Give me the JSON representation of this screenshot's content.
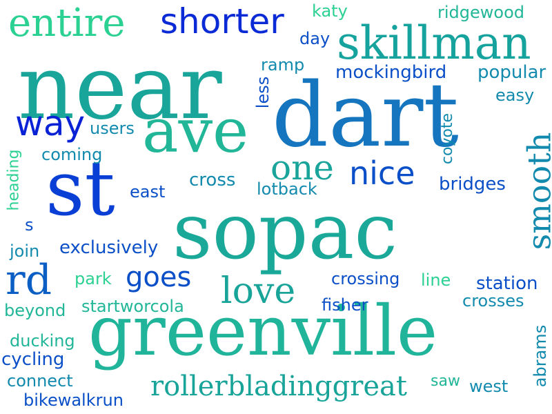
{
  "words": [
    {
      "id": "near",
      "text": "near",
      "color": "#1aa59b"
    },
    {
      "id": "dart",
      "text": "dart",
      "color": "#1575be"
    },
    {
      "id": "sopac",
      "text": "sopac",
      "color": "#1aa899"
    },
    {
      "id": "greenville",
      "text": "greenville",
      "color": "#20b49a"
    },
    {
      "id": "st",
      "text": "st",
      "color": "#0a3fd6"
    },
    {
      "id": "ave",
      "text": "ave",
      "color": "#20b697"
    },
    {
      "id": "skillman",
      "text": "skillman",
      "color": "#16a39d"
    },
    {
      "id": "shorter",
      "text": "shorter",
      "color": "#0a2ad6"
    },
    {
      "id": "entire",
      "text": "entire",
      "color": "#2bd192"
    },
    {
      "id": "rd",
      "text": "rd",
      "color": "#0a5ec4"
    },
    {
      "id": "way",
      "text": "way",
      "color": "#0a22d6"
    },
    {
      "id": "one",
      "text": "one",
      "color": "#18a49a"
    },
    {
      "id": "nice",
      "text": "nice",
      "color": "#0a4fc8"
    },
    {
      "id": "smooth",
      "text": "smooth",
      "color": "#128aae"
    },
    {
      "id": "love",
      "text": "love",
      "color": "#19a49a"
    },
    {
      "id": "goes",
      "text": "goes",
      "color": "#0a4fc8"
    },
    {
      "id": "rollerbladinggreat",
      "text": "rollerbladinggreat",
      "color": "#19a49a"
    },
    {
      "id": "katy",
      "text": "katy",
      "color": "#2bd192"
    },
    {
      "id": "ridgewood",
      "text": "ridgewood",
      "color": "#20b697"
    },
    {
      "id": "day",
      "text": "day",
      "color": "#0a4fc8"
    },
    {
      "id": "ramp",
      "text": "ramp",
      "color": "#128aae"
    },
    {
      "id": "less",
      "text": "less",
      "color": "#0a4fc8"
    },
    {
      "id": "mockingbird",
      "text": "mockingbird",
      "color": "#0a4fc8"
    },
    {
      "id": "popular",
      "text": "popular",
      "color": "#128aae"
    },
    {
      "id": "easy",
      "text": "easy",
      "color": "#128aae"
    },
    {
      "id": "users",
      "text": "users",
      "color": "#128aae"
    },
    {
      "id": "coyote",
      "text": "coyote",
      "color": "#128aae"
    },
    {
      "id": "coming",
      "text": "coming",
      "color": "#128aae"
    },
    {
      "id": "heading",
      "text": "heading",
      "color": "#2bd192"
    },
    {
      "id": "cross",
      "text": "cross",
      "color": "#128aae"
    },
    {
      "id": "east",
      "text": "east",
      "color": "#0a4fc8"
    },
    {
      "id": "lotback",
      "text": "lotback",
      "color": "#128aae"
    },
    {
      "id": "bridges",
      "text": "bridges",
      "color": "#0a4fc8"
    },
    {
      "id": "s",
      "text": "s",
      "color": "#0a4fc8"
    },
    {
      "id": "join",
      "text": "join",
      "color": "#128aae"
    },
    {
      "id": "exclusively",
      "text": "exclusively",
      "color": "#0a4fc8"
    },
    {
      "id": "park",
      "text": "park",
      "color": "#2bd192"
    },
    {
      "id": "crossing",
      "text": "crossing",
      "color": "#0a4fc8"
    },
    {
      "id": "line",
      "text": "line",
      "color": "#2bd192"
    },
    {
      "id": "station",
      "text": "station",
      "color": "#0a4fc8"
    },
    {
      "id": "beyond",
      "text": "beyond",
      "color": "#20b697"
    },
    {
      "id": "startworcola",
      "text": "startworcola",
      "color": "#20b697"
    },
    {
      "id": "fisher",
      "text": "fisher",
      "color": "#0a4fc8"
    },
    {
      "id": "crosses",
      "text": "crosses",
      "color": "#128aae"
    },
    {
      "id": "ducking",
      "text": "ducking",
      "color": "#20b697"
    },
    {
      "id": "abrams",
      "text": "abrams",
      "color": "#128aae"
    },
    {
      "id": "cycling",
      "text": "cycling",
      "color": "#0a4fc8"
    },
    {
      "id": "connect",
      "text": "connect",
      "color": "#128aae"
    },
    {
      "id": "saw",
      "text": "saw",
      "color": "#20b697"
    },
    {
      "id": "west",
      "text": "west",
      "color": "#128aae"
    },
    {
      "id": "bikewalkrun",
      "text": "bikewalkrun",
      "color": "#0a4fc8"
    }
  ]
}
